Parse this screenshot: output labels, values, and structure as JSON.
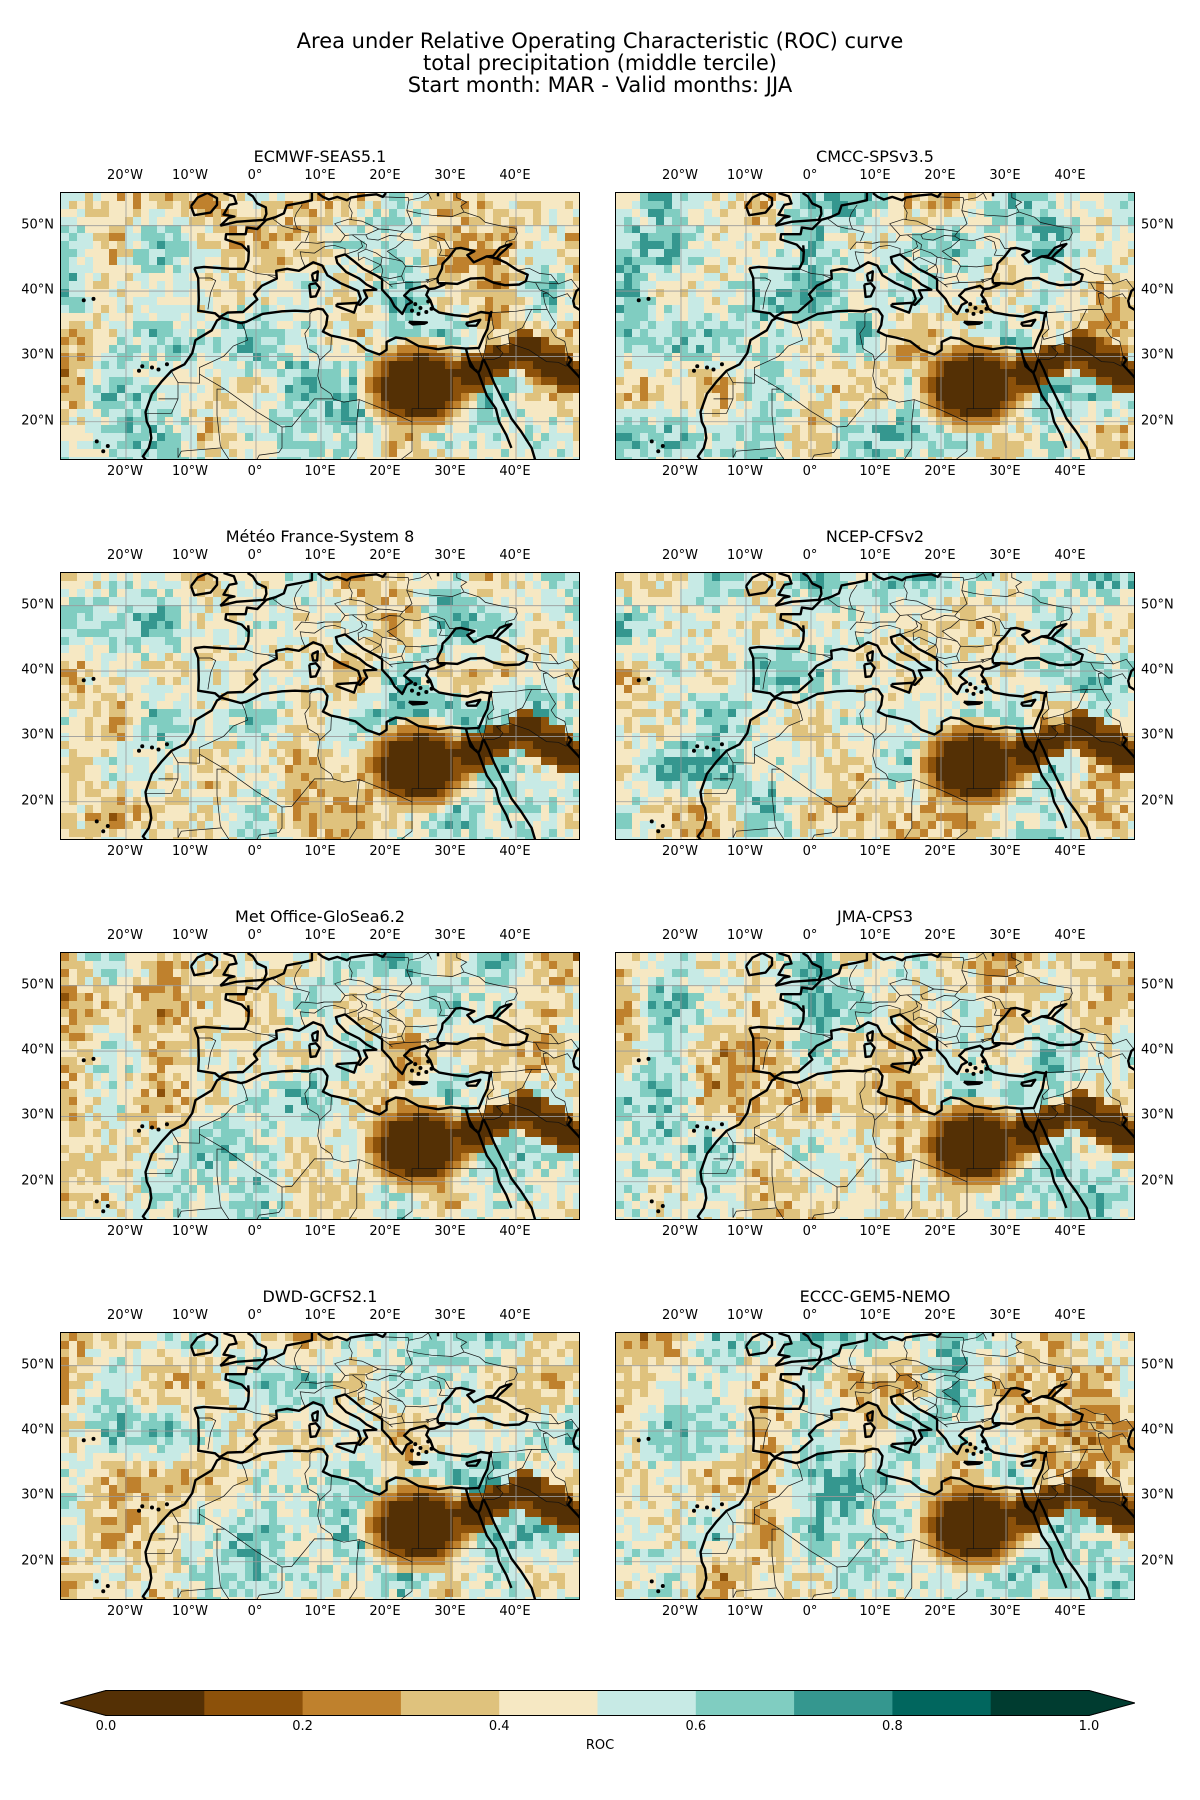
{
  "title": {
    "line1": "Area under Relative Operating Characteristic (ROC) curve",
    "line2": "total precipitation (middle tercile)",
    "line3": "Start month: MAR - Valid months: JJA"
  },
  "map_extent": {
    "lon": [
      -30,
      50
    ],
    "lat": [
      14,
      55
    ]
  },
  "lon_ticks": [
    {
      "value": -20,
      "label": "20°W"
    },
    {
      "value": -10,
      "label": "10°W"
    },
    {
      "value": 0,
      "label": "0°"
    },
    {
      "value": 10,
      "label": "10°E"
    },
    {
      "value": 20,
      "label": "20°E"
    },
    {
      "value": 30,
      "label": "30°E"
    },
    {
      "value": 40,
      "label": "40°E"
    }
  ],
  "lat_ticks": [
    {
      "value": 50,
      "label": "50°N"
    },
    {
      "value": 40,
      "label": "40°N"
    },
    {
      "value": 30,
      "label": "30°N"
    },
    {
      "value": 20,
      "label": "20°N"
    }
  ],
  "panels": [
    {
      "title": "ECMWF-SEAS5.1",
      "lat_labels_side": "left"
    },
    {
      "title": "CMCC-SPSv3.5",
      "lat_labels_side": "right"
    },
    {
      "title": "Météo France-System 8",
      "lat_labels_side": "left"
    },
    {
      "title": "NCEP-CFSv2",
      "lat_labels_side": "right"
    },
    {
      "title": "Met Office-GloSea6.2",
      "lat_labels_side": "left"
    },
    {
      "title": "JMA-CPS3",
      "lat_labels_side": "right"
    },
    {
      "title": "DWD-GCFS2.1",
      "lat_labels_side": "left"
    },
    {
      "title": "ECCC-GEM5-NEMO",
      "lat_labels_side": "right"
    }
  ],
  "colorbar": {
    "label": "ROC",
    "boundaries": [
      0.0,
      0.1,
      0.2,
      0.3,
      0.4,
      0.5,
      0.6,
      0.7,
      0.8,
      0.9,
      1.0
    ],
    "colors": [
      "#543005",
      "#8c510a",
      "#bf812d",
      "#dfc27d",
      "#f6e8c3",
      "#c7eae5",
      "#80cdc1",
      "#35978f",
      "#01665e",
      "#003c30"
    ],
    "tick_labels": [
      {
        "value": 0.0,
        "label": "0.0"
      },
      {
        "value": 0.2,
        "label": "0.2"
      },
      {
        "value": 0.4,
        "label": "0.4"
      },
      {
        "value": 0.6,
        "label": "0.6"
      },
      {
        "value": 0.8,
        "label": "0.8"
      },
      {
        "value": 1.0,
        "label": "1.0"
      }
    ],
    "extend": "both"
  }
}
